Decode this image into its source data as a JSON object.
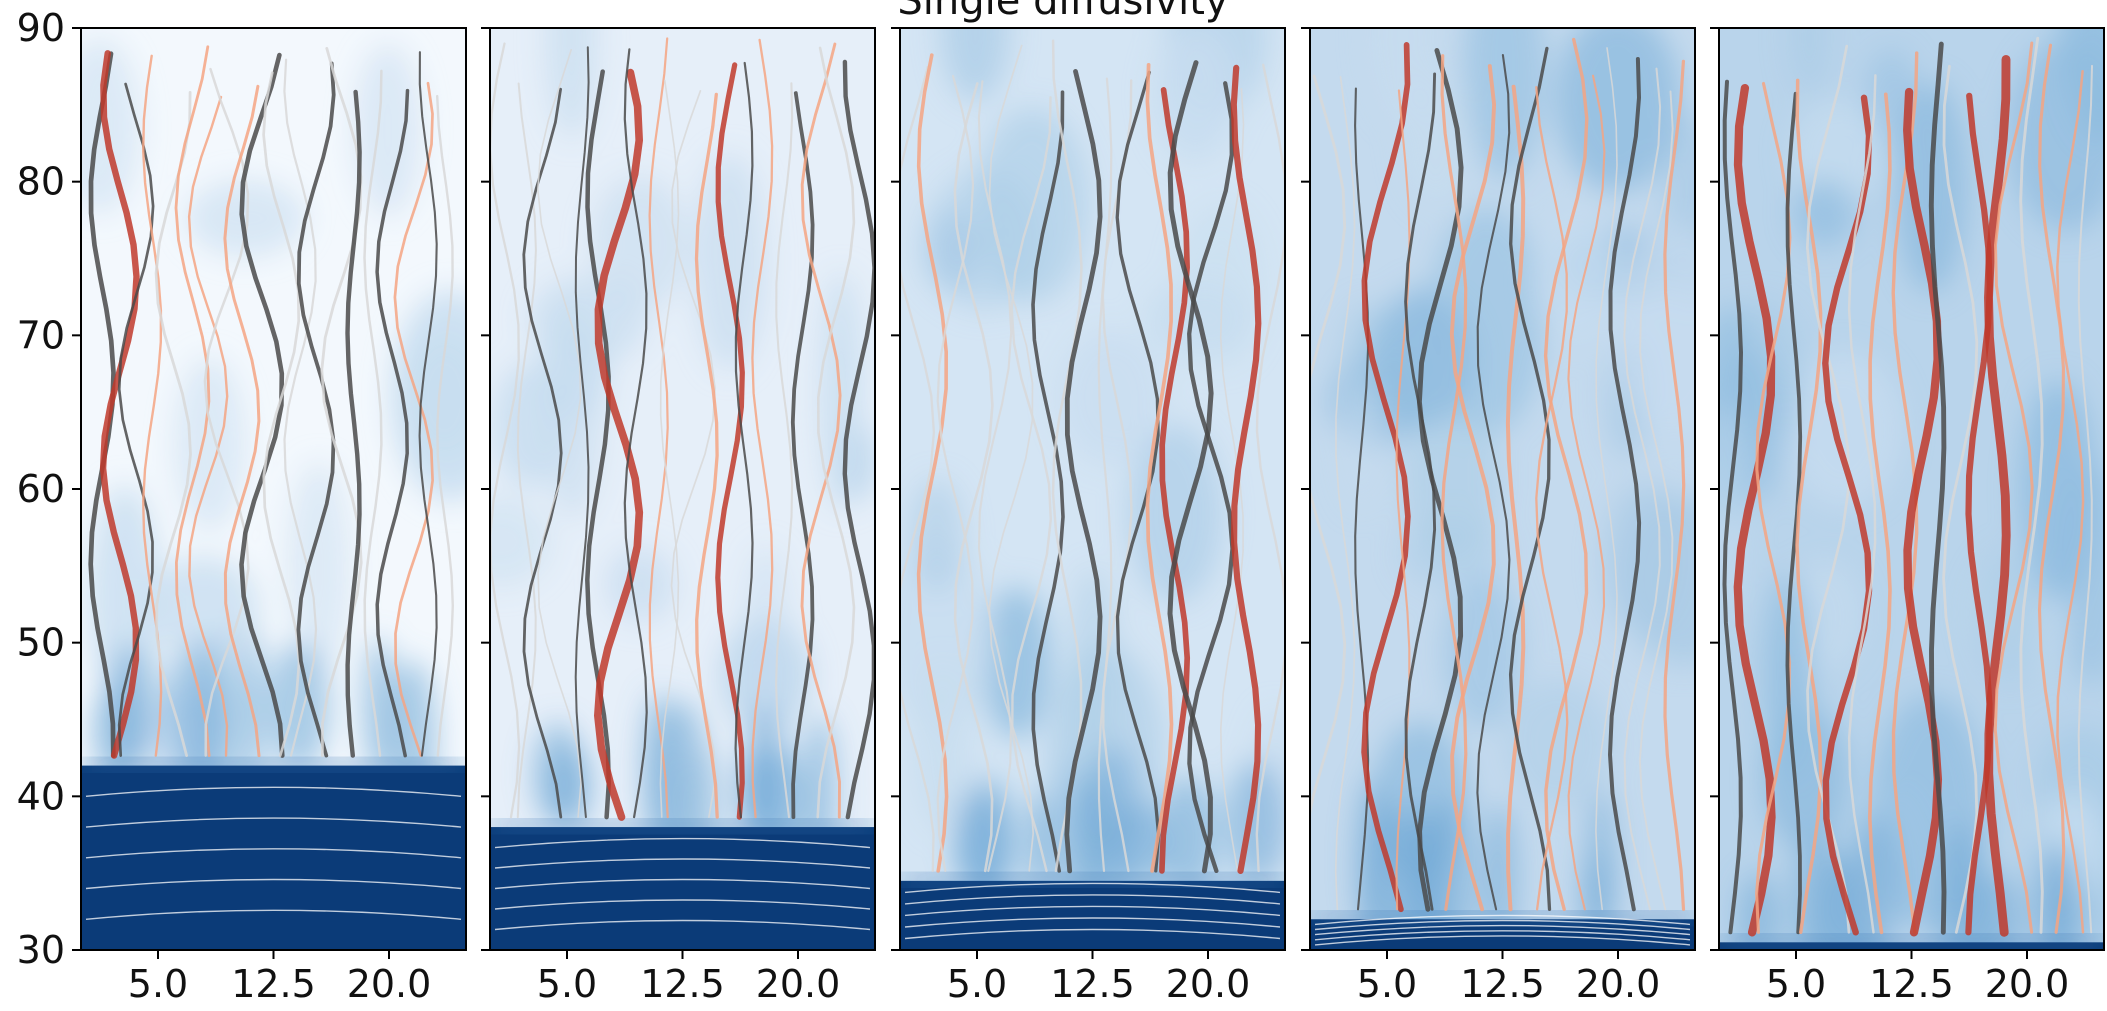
{
  "chart_data": {
    "type": "heatmap",
    "title": "Single diffusivity",
    "panels": 5,
    "xlim": [
      0,
      25
    ],
    "ylim": [
      30,
      90
    ],
    "xticks": [
      5.0,
      12.5,
      20.0
    ],
    "xtick_labels": [
      "5.0",
      "12.5",
      "20.0"
    ],
    "yticks": [
      30,
      40,
      50,
      60,
      70,
      80,
      90
    ],
    "ytick_labels": [
      "30",
      "40",
      "50",
      "60",
      "70",
      "80",
      "90"
    ],
    "interface_heights": [
      42,
      38,
      34.5,
      32,
      30.5
    ],
    "grid": false,
    "colors": {
      "dense_layer": "#0b3b78",
      "background_light": "#f1f6fc",
      "streamline_dark": "#4a4a4a",
      "streamline_light": "#d8d8d8",
      "streamline_hot": "#c0392b",
      "streamline_warm": "#f4a582"
    }
  }
}
